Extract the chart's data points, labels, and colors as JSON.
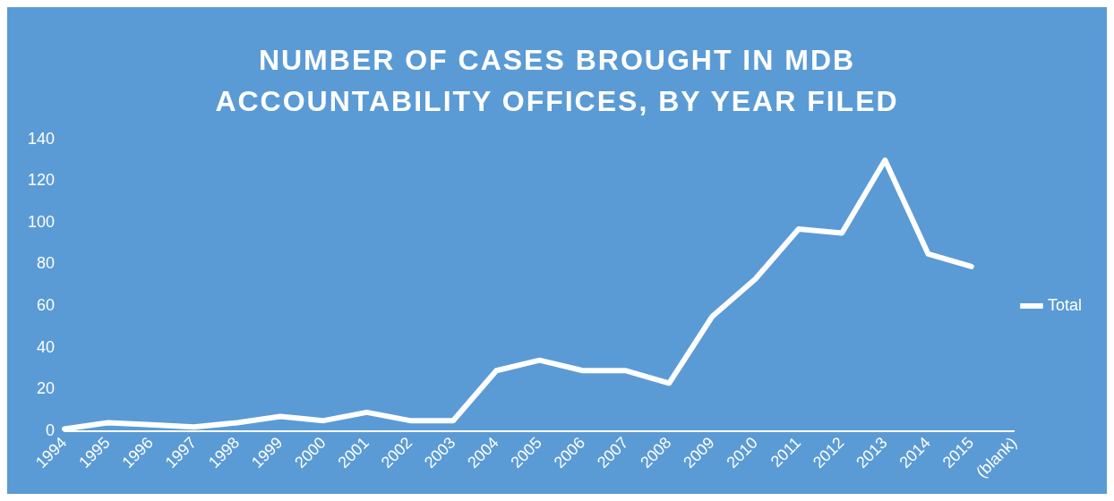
{
  "chart_data": {
    "type": "line",
    "title": "NUMBER OF CASES BROUGHT IN MDB ACCOUNTABILITY OFFICES, BY YEAR FILED",
    "categories": [
      "1994",
      "1995",
      "1996",
      "1997",
      "1998",
      "1999",
      "2000",
      "2001",
      "2002",
      "2003",
      "2004",
      "2005",
      "2006",
      "2007",
      "2008",
      "2009",
      "2010",
      "2011",
      "2012",
      "2013",
      "2014",
      "2015",
      "(blank)"
    ],
    "series": [
      {
        "name": "Total",
        "color": "#ffffff",
        "values": [
          1,
          4,
          3,
          2,
          4,
          7,
          5,
          9,
          5,
          5,
          29,
          34,
          29,
          29,
          23,
          55,
          73,
          97,
          95,
          130,
          85,
          79,
          null
        ]
      }
    ],
    "ylim": [
      0,
      140
    ],
    "yticks": [
      0,
      20,
      40,
      60,
      80,
      100,
      120,
      140
    ],
    "grid": false,
    "legend": "right",
    "marker": "none",
    "line_style": "solid"
  }
}
